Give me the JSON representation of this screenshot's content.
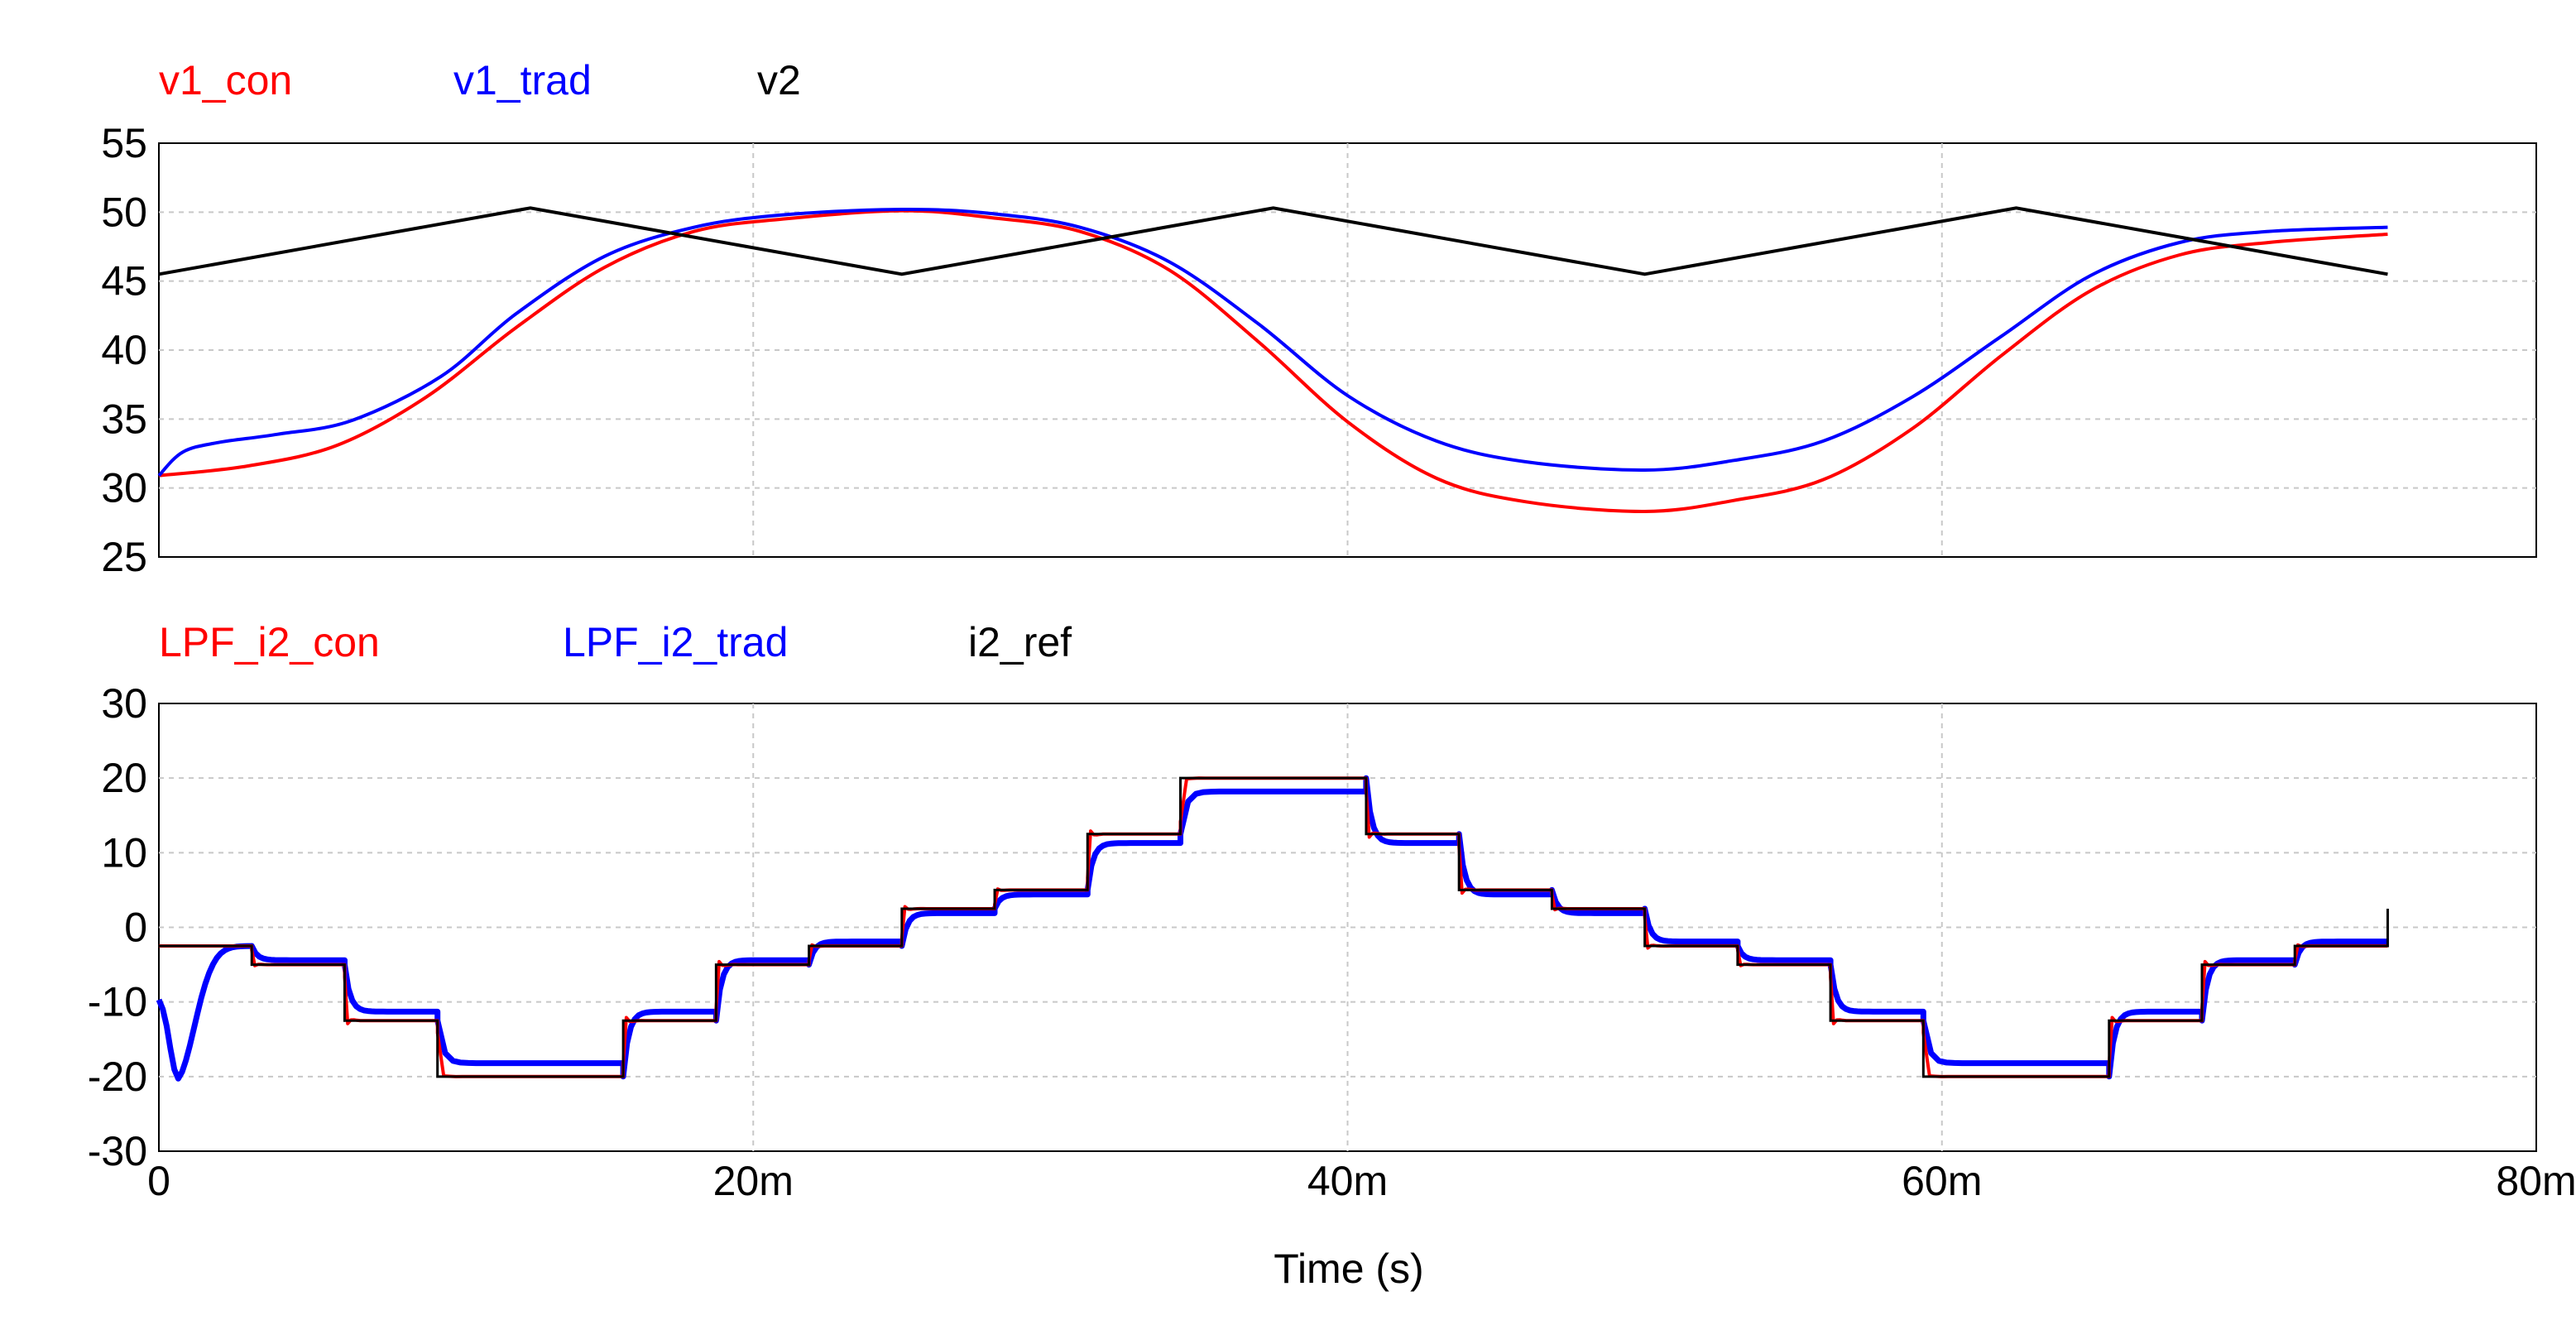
{
  "chart_data": [
    {
      "type": "line",
      "xlim": [
        0,
        80
      ],
      "ylim": [
        25,
        55
      ],
      "yticks": [
        25,
        30,
        35,
        40,
        45,
        50,
        55
      ],
      "xticks": [
        0,
        20,
        40,
        60,
        80
      ],
      "grid": true,
      "legend_position": "top-left",
      "series": [
        {
          "name": "v1_con",
          "color": "#ff0000",
          "x": [
            0,
            3,
            6,
            9,
            12,
            15,
            18,
            21,
            25,
            28,
            31,
            34,
            37,
            40,
            43,
            46,
            50,
            53,
            56,
            59,
            62,
            65,
            68,
            71,
            75
          ],
          "y": [
            30.9,
            31.6,
            33.1,
            36.6,
            41.6,
            46.0,
            48.6,
            49.5,
            50.1,
            49.6,
            48.6,
            45.8,
            40.6,
            34.8,
            30.7,
            29.0,
            28.3,
            29.1,
            30.6,
            34.3,
            39.6,
            44.3,
            46.9,
            47.8,
            48.4
          ]
        },
        {
          "name": "v1_trad",
          "color": "#0000ff",
          "x": [
            0,
            0.8,
            2,
            4,
            6.5,
            9.5,
            12,
            15,
            18,
            21,
            25,
            28,
            31,
            34,
            37,
            40,
            43,
            46,
            50,
            53,
            56,
            59,
            62,
            65,
            68,
            71,
            75
          ],
          "y": [
            30.9,
            32.6,
            33.3,
            33.9,
            34.9,
            38.1,
            42.6,
            46.8,
            48.9,
            49.8,
            50.2,
            49.9,
            48.9,
            46.4,
            41.9,
            36.7,
            33.4,
            31.9,
            31.3,
            32.0,
            33.4,
            36.6,
            41.0,
            45.4,
            47.8,
            48.6,
            48.9
          ]
        },
        {
          "name": "v2",
          "color": "#000000",
          "x": [
            0,
            12.5,
            25,
            37.5,
            50,
            62.5,
            75
          ],
          "y": [
            45.5,
            50.3,
            45.5,
            50.3,
            45.5,
            50.3,
            45.5
          ]
        }
      ]
    },
    {
      "type": "line",
      "xlim": [
        0,
        80
      ],
      "ylim": [
        -30,
        30
      ],
      "yticks": [
        -30,
        -20,
        -10,
        0,
        10,
        20,
        30
      ],
      "xticks": [
        0,
        20,
        40,
        60,
        80
      ],
      "xtick_labels": [
        "0",
        "20m",
        "40m",
        "60m",
        "80m"
      ],
      "xlabel": "Time (s)",
      "grid": true,
      "legend_position": "top-left",
      "i2_ref_steps": {
        "edges": [
          0,
          3.125,
          6.25,
          9.375,
          15.625,
          18.75,
          21.875,
          25,
          28.125,
          31.25,
          34.375,
          40.625,
          43.75,
          46.875,
          50,
          53.125,
          56.25,
          59.375,
          65.625,
          68.75,
          71.875,
          75
        ],
        "levels": [
          -2.5,
          -5,
          -12.5,
          -20,
          -12.5,
          -5,
          -2.5,
          2.5,
          5,
          12.5,
          20,
          12.5,
          5,
          2.5,
          -2.5,
          -5,
          -12.5,
          -20,
          -12.5,
          -5,
          -2.5
        ],
        "end_value": 2.5
      },
      "series": [
        {
          "name": "LPF_i2_con",
          "color": "#ff0000"
        },
        {
          "name": "LPF_i2_trad",
          "color": "#0000ff"
        },
        {
          "name": "i2_ref",
          "color": "#000000"
        }
      ]
    }
  ]
}
